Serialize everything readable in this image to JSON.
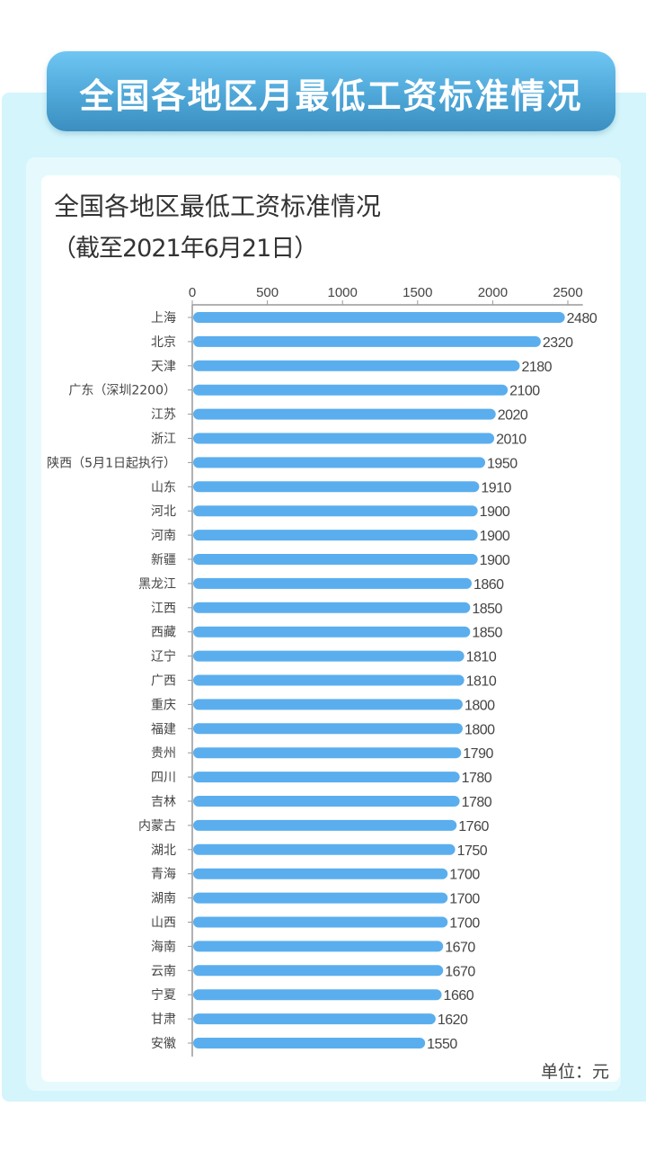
{
  "header": {
    "title": "全国各地区月最低工资标准情况"
  },
  "chart_data": {
    "type": "bar",
    "orientation": "horizontal",
    "title": "全国各地区最低工资标准情况",
    "subtitle": "（截至2021年6月21日）",
    "unit_label": "单位：元",
    "xlim": [
      0,
      2600
    ],
    "xticks": [
      0,
      500,
      1000,
      1500,
      2000,
      2500
    ],
    "axis_position": "top",
    "grid": false,
    "bar_color": "#5aaeee",
    "categories": [
      "上海",
      "北京",
      "天津",
      "广东（深圳2200）",
      "江苏",
      "浙江",
      "陕西（5月1日起执行）",
      "山东",
      "河北",
      "河南",
      "新疆",
      "黑龙江",
      "江西",
      "西藏",
      "辽宁",
      "广西",
      "重庆",
      "福建",
      "贵州",
      "四川",
      "吉林",
      "内蒙古",
      "湖北",
      "青海",
      "湖南",
      "山西",
      "海南",
      "云南",
      "宁夏",
      "甘肃",
      "安徽"
    ],
    "values": [
      2480,
      2320,
      2180,
      2100,
      2020,
      2010,
      1950,
      1910,
      1900,
      1900,
      1900,
      1860,
      1850,
      1850,
      1810,
      1810,
      1800,
      1800,
      1790,
      1780,
      1780,
      1760,
      1750,
      1700,
      1700,
      1700,
      1670,
      1670,
      1660,
      1620,
      1550
    ]
  }
}
